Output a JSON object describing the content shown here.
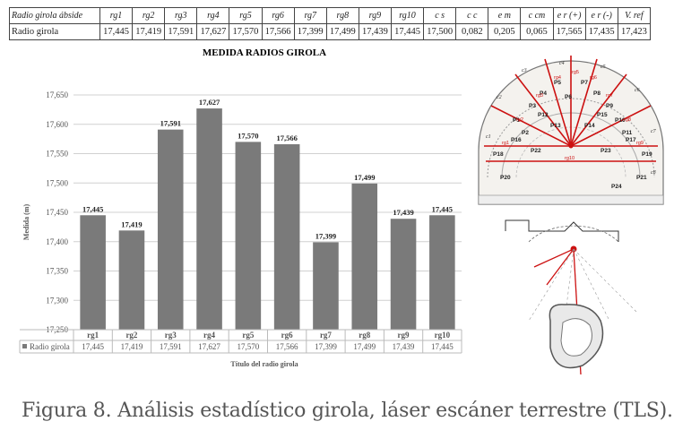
{
  "summary_table": {
    "header_label": "Radio girola ábside",
    "value_label": "Radio girola",
    "headers": [
      "rg1",
      "rg2",
      "rg3",
      "rg4",
      "rg5",
      "rg6",
      "rg7",
      "rg8",
      "rg9",
      "rg10",
      "c s",
      "c c",
      "e m",
      "c cm",
      "e r (+)",
      "e r (-)",
      "V. ref"
    ],
    "values": [
      "17,445",
      "17,419",
      "17,591",
      "17,627",
      "17,570",
      "17,566",
      "17,399",
      "17,499",
      "17,439",
      "17,445",
      "17,500",
      "0,082",
      "0,205",
      "0,065",
      "17,565",
      "17,435",
      "17,423"
    ]
  },
  "chart_data": {
    "type": "bar",
    "title": "MEDIDA RADIOS GIROLA",
    "xlabel": "Título del radio girola",
    "ylabel": "Medida (m)",
    "categories": [
      "rg1",
      "rg2",
      "rg3",
      "rg4",
      "rg5",
      "rg6",
      "rg7",
      "rg8",
      "rg9",
      "rg10"
    ],
    "series": [
      {
        "name": "Radio girola",
        "values": [
          17.445,
          17.419,
          17.591,
          17.627,
          17.57,
          17.566,
          17.399,
          17.499,
          17.439,
          17.445
        ]
      }
    ],
    "value_labels": [
      "17,445",
      "17,419",
      "17,591",
      "17,627",
      "17,570",
      "17,566",
      "17,399",
      "17,499",
      "17,439",
      "17,445"
    ],
    "yticks": [
      "17,250",
      "17,300",
      "17,350",
      "17,400",
      "17,450",
      "17,500",
      "17,550",
      "17,600",
      "17,650"
    ],
    "ylim": [
      17.25,
      17.65
    ],
    "grid": true,
    "bar_color": "#7a7a7a",
    "legend_placement": "data-table-row"
  },
  "caption": "Figura 8. Análisis estadístico girola, láser escáner terrestre (TLS).",
  "figure_labels": {
    "radii": [
      "rg1",
      "rg2",
      "rg3",
      "rg4",
      "rg5",
      "rg6",
      "rg7",
      "rg8",
      "rg9",
      "rg10"
    ],
    "points": [
      "P1",
      "P2",
      "P3",
      "P4",
      "P5",
      "P6",
      "P7",
      "P8",
      "P9",
      "P10",
      "P11",
      "P12",
      "P13",
      "P14",
      "P15",
      "P16",
      "P17",
      "P18",
      "P19",
      "P20",
      "P21",
      "P22",
      "P23",
      "P24"
    ],
    "chapels": [
      "c1",
      "c2",
      "c3",
      "c4",
      "c5",
      "c6",
      "c7",
      "c8"
    ]
  },
  "colors": {
    "accent_red": "#cc1111",
    "bars": "#7a7a7a",
    "grid": "#d0d0d0"
  }
}
